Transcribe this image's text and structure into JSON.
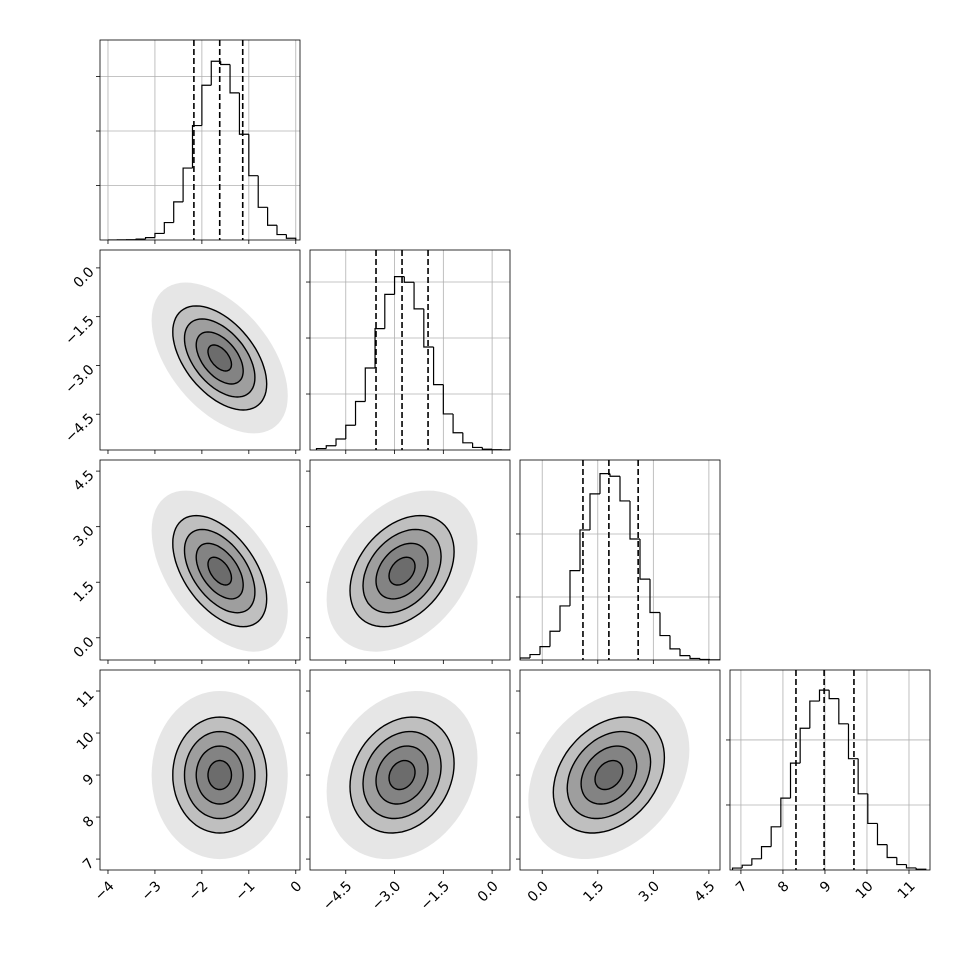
{
  "chart_data": {
    "type": "corner",
    "color": "#000000",
    "levels": [
      0.5,
      1,
      1.5,
      2
    ],
    "grid": true,
    "parameters": [
      {
        "mean": -1.62,
        "sd": 0.5,
        "lim": [
          -4.17,
          0.09
        ],
        "ticks": [
          {
            "value": -4,
            "label": "−4"
          },
          {
            "value": -3,
            "label": "−3"
          },
          {
            "value": -2,
            "label": "−2"
          },
          {
            "value": -1,
            "label": "−1"
          },
          0
        ],
        "quantiles": [
          -2.17,
          -1.62,
          -1.13
        ],
        "hist": {
          "bins": [
            -4.0,
            -3.8,
            -3.6,
            -3.4,
            -3.2,
            -3.0,
            -2.8,
            -2.6,
            -2.4,
            -2.2,
            -2.0,
            -1.8,
            -1.6,
            -1.4,
            -1.2,
            -1.0,
            -0.8,
            -0.6,
            -0.4,
            -0.2,
            0.0
          ],
          "counts": [
            0,
            1,
            3,
            8,
            22,
            60,
            160,
            350,
            660,
            1050,
            1420,
            1640,
            1610,
            1350,
            970,
            590,
            300,
            135,
            50,
            16
          ],
          "ylim": [
            0,
            1835
          ],
          "yticks": [
            500,
            1000,
            1500
          ]
        }
      },
      {
        "mean": -2.77,
        "sd": 0.8,
        "lim": [
          -5.6,
          0.55
        ],
        "ticks": [
          {
            "value": -4.5,
            "label": "−4.5"
          },
          {
            "value": -3.0,
            "label": "−3.0"
          },
          {
            "value": -1.5,
            "label": "−1.5"
          },
          {
            "value": 0,
            "label": "0.0"
          }
        ],
        "quantiles": [
          -3.57,
          -2.77,
          -1.97
        ],
        "hist": {
          "bins": [
            -5.4,
            -5.1,
            -4.8,
            -4.5,
            -4.2,
            -3.9,
            -3.6,
            -3.3,
            -3.0,
            -2.7,
            -2.4,
            -2.1,
            -1.8,
            -1.5,
            -1.2,
            -0.9,
            -0.6,
            -0.3,
            0.0,
            0.3,
            0.6
          ],
          "counts": [
            13,
            38,
            98,
            221,
            433,
            732,
            1084,
            1390,
            1548,
            1498,
            1260,
            920,
            584,
            322,
            154,
            64,
            23,
            7,
            2,
            0
          ],
          "ylim": [
            0,
            1786
          ],
          "yticks": [
            500,
            1000,
            1500
          ]
        }
      },
      {
        "mean": 1.8,
        "sd": 0.75,
        "lim": [
          -0.6,
          4.8
        ],
        "ticks": [
          {
            "value": 0,
            "label": "0.0"
          },
          1.5,
          {
            "value": 3.0,
            "label": "3.0"
          },
          4.5
        ],
        "quantiles": [
          1.1,
          1.8,
          2.59
        ],
        "hist": {
          "bins": [
            -0.6,
            -0.33,
            -0.06,
            0.21,
            0.48,
            0.75,
            1.02,
            1.29,
            1.56,
            1.83,
            2.1,
            2.37,
            2.64,
            2.91,
            3.18,
            3.45,
            3.72,
            3.99,
            4.26,
            4.53,
            4.8
          ],
          "counts": [
            16,
            43,
            106,
            228,
            429,
            709,
            1032,
            1318,
            1479,
            1458,
            1262,
            960,
            642,
            377,
            194,
            88,
            35,
            12,
            4,
            1
          ],
          "ylim": [
            0,
            1587
          ],
          "yticks": [
            500,
            1000
          ]
        }
      },
      {
        "mean": 9.0,
        "sd": 0.69,
        "lim": [
          6.74,
          11.5
        ],
        "ticks": [
          7,
          8,
          9,
          10,
          11
        ],
        "quantiles": [
          8.31,
          8.98,
          9.69
        ],
        "hist": {
          "bins": [
            6.8,
            7.03,
            7.26,
            7.49,
            7.72,
            7.95,
            8.18,
            8.41,
            8.64,
            8.87,
            9.1,
            9.33,
            9.56,
            9.79,
            10.02,
            10.25,
            10.48,
            10.71,
            10.94,
            11.17,
            11.4
          ],
          "counts": [
            15,
            37,
            86,
            180,
            332,
            553,
            822,
            1090,
            1299,
            1383,
            1318,
            1124,
            856,
            586,
            358,
            195,
            96,
            42,
            16,
            6
          ],
          "ylim": [
            0,
            1538
          ],
          "yticks": [
            500,
            1000
          ]
        }
      }
    ],
    "correlations": [
      [
        -0.5
      ],
      [
        -0.5,
        0.35
      ],
      [
        0.0,
        0.2,
        0.3
      ]
    ]
  }
}
